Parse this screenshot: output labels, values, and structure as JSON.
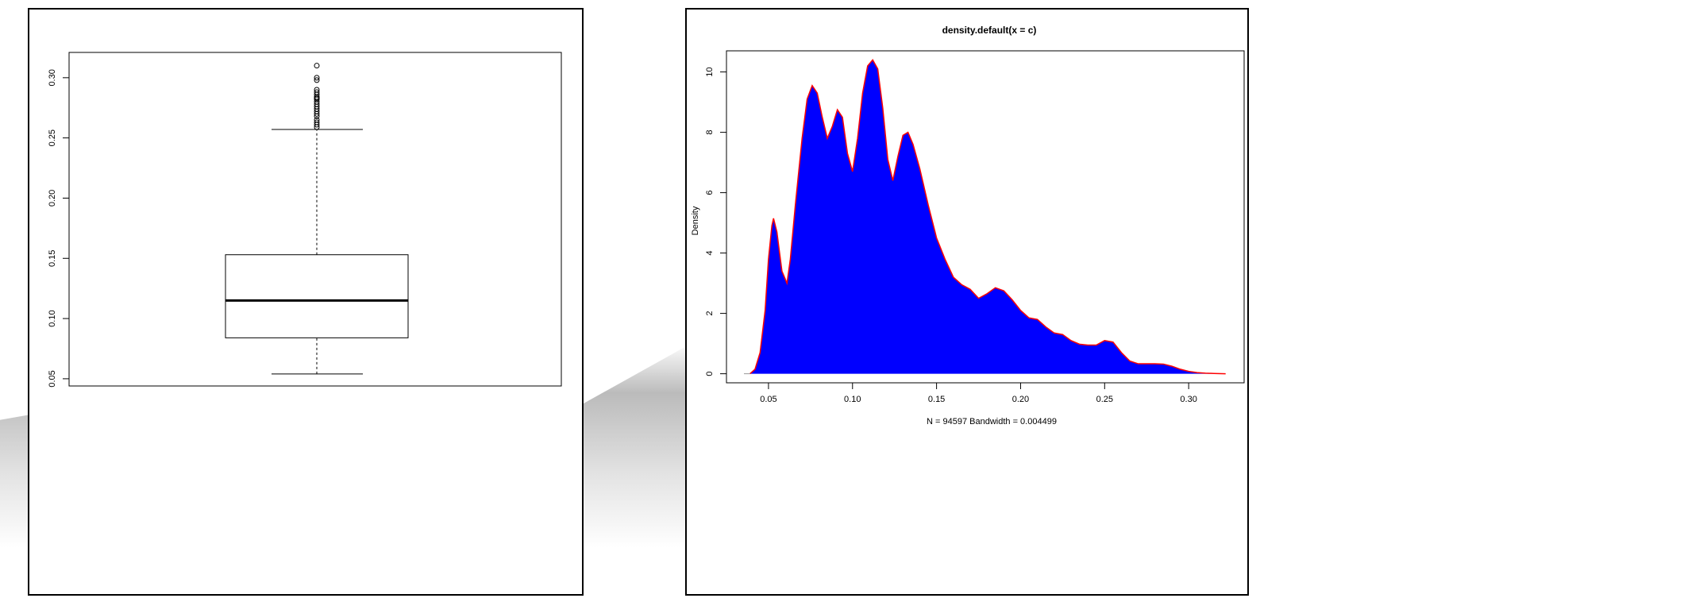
{
  "chart_data": [
    {
      "type": "boxplot",
      "title": "",
      "xlabel": "",
      "ylabel": "",
      "ylim": [
        0.044,
        0.321
      ],
      "yticks": [
        "0.05",
        "0.10",
        "0.15",
        "0.20",
        "0.25",
        "0.30"
      ],
      "stats": {
        "whisker_low": 0.054,
        "q1": 0.084,
        "median": 0.115,
        "q3": 0.153,
        "whisker_high": 0.257
      },
      "outliers": [
        0.259,
        0.261,
        0.263,
        0.265,
        0.268,
        0.27,
        0.272,
        0.274,
        0.276,
        0.278,
        0.28,
        0.282,
        0.283,
        0.284,
        0.286,
        0.288,
        0.29,
        0.298,
        0.3,
        0.31
      ],
      "color": "#000000"
    },
    {
      "type": "area",
      "title": "density.default(x = c)",
      "xlabel": "N = 94597   Bandwidth = 0.004499",
      "ylabel": "Density",
      "xlim": [
        0.025,
        0.333
      ],
      "ylim": [
        -0.3,
        10.7
      ],
      "xticks": [
        "0.05",
        "0.10",
        "0.15",
        "0.20",
        "0.25",
        "0.30"
      ],
      "yticks": [
        "0",
        "2",
        "4",
        "6",
        "8",
        "10"
      ],
      "fill_color": "#0000ff",
      "line_color": "#ff0000",
      "series": [
        {
          "x": [
            0.039,
            0.042,
            0.045,
            0.048,
            0.05,
            0.052,
            0.053,
            0.055,
            0.058,
            0.061,
            0.063,
            0.066,
            0.07,
            0.073,
            0.076,
            0.079,
            0.082,
            0.085,
            0.088,
            0.091,
            0.094,
            0.097,
            0.1,
            0.103,
            0.106,
            0.109,
            0.112,
            0.115,
            0.118,
            0.121,
            0.124,
            0.127,
            0.13,
            0.133,
            0.136,
            0.14,
            0.145,
            0.15,
            0.155,
            0.16,
            0.165,
            0.17,
            0.175,
            0.18,
            0.185,
            0.19,
            0.195,
            0.2,
            0.205,
            0.21,
            0.215,
            0.22,
            0.225,
            0.23,
            0.235,
            0.24,
            0.245,
            0.25,
            0.255,
            0.26,
            0.265,
            0.27,
            0.275,
            0.28,
            0.285,
            0.29,
            0.295,
            0.3,
            0.305,
            0.31,
            0.315,
            0.322
          ],
          "y": [
            0.0,
            0.15,
            0.7,
            2.1,
            3.8,
            4.9,
            5.15,
            4.7,
            3.4,
            3.0,
            3.8,
            5.6,
            7.8,
            9.1,
            9.55,
            9.3,
            8.5,
            7.8,
            8.2,
            8.75,
            8.5,
            7.3,
            6.7,
            7.8,
            9.3,
            10.2,
            10.4,
            10.1,
            8.8,
            7.1,
            6.4,
            7.2,
            7.9,
            8.0,
            7.6,
            6.8,
            5.6,
            4.5,
            3.8,
            3.2,
            2.95,
            2.8,
            2.5,
            2.65,
            2.85,
            2.75,
            2.45,
            2.1,
            1.85,
            1.8,
            1.55,
            1.35,
            1.3,
            1.1,
            0.98,
            0.95,
            0.95,
            1.1,
            1.05,
            0.7,
            0.42,
            0.33,
            0.33,
            0.33,
            0.32,
            0.25,
            0.15,
            0.08,
            0.04,
            0.02,
            0.01,
            0.0
          ]
        }
      ]
    }
  ]
}
